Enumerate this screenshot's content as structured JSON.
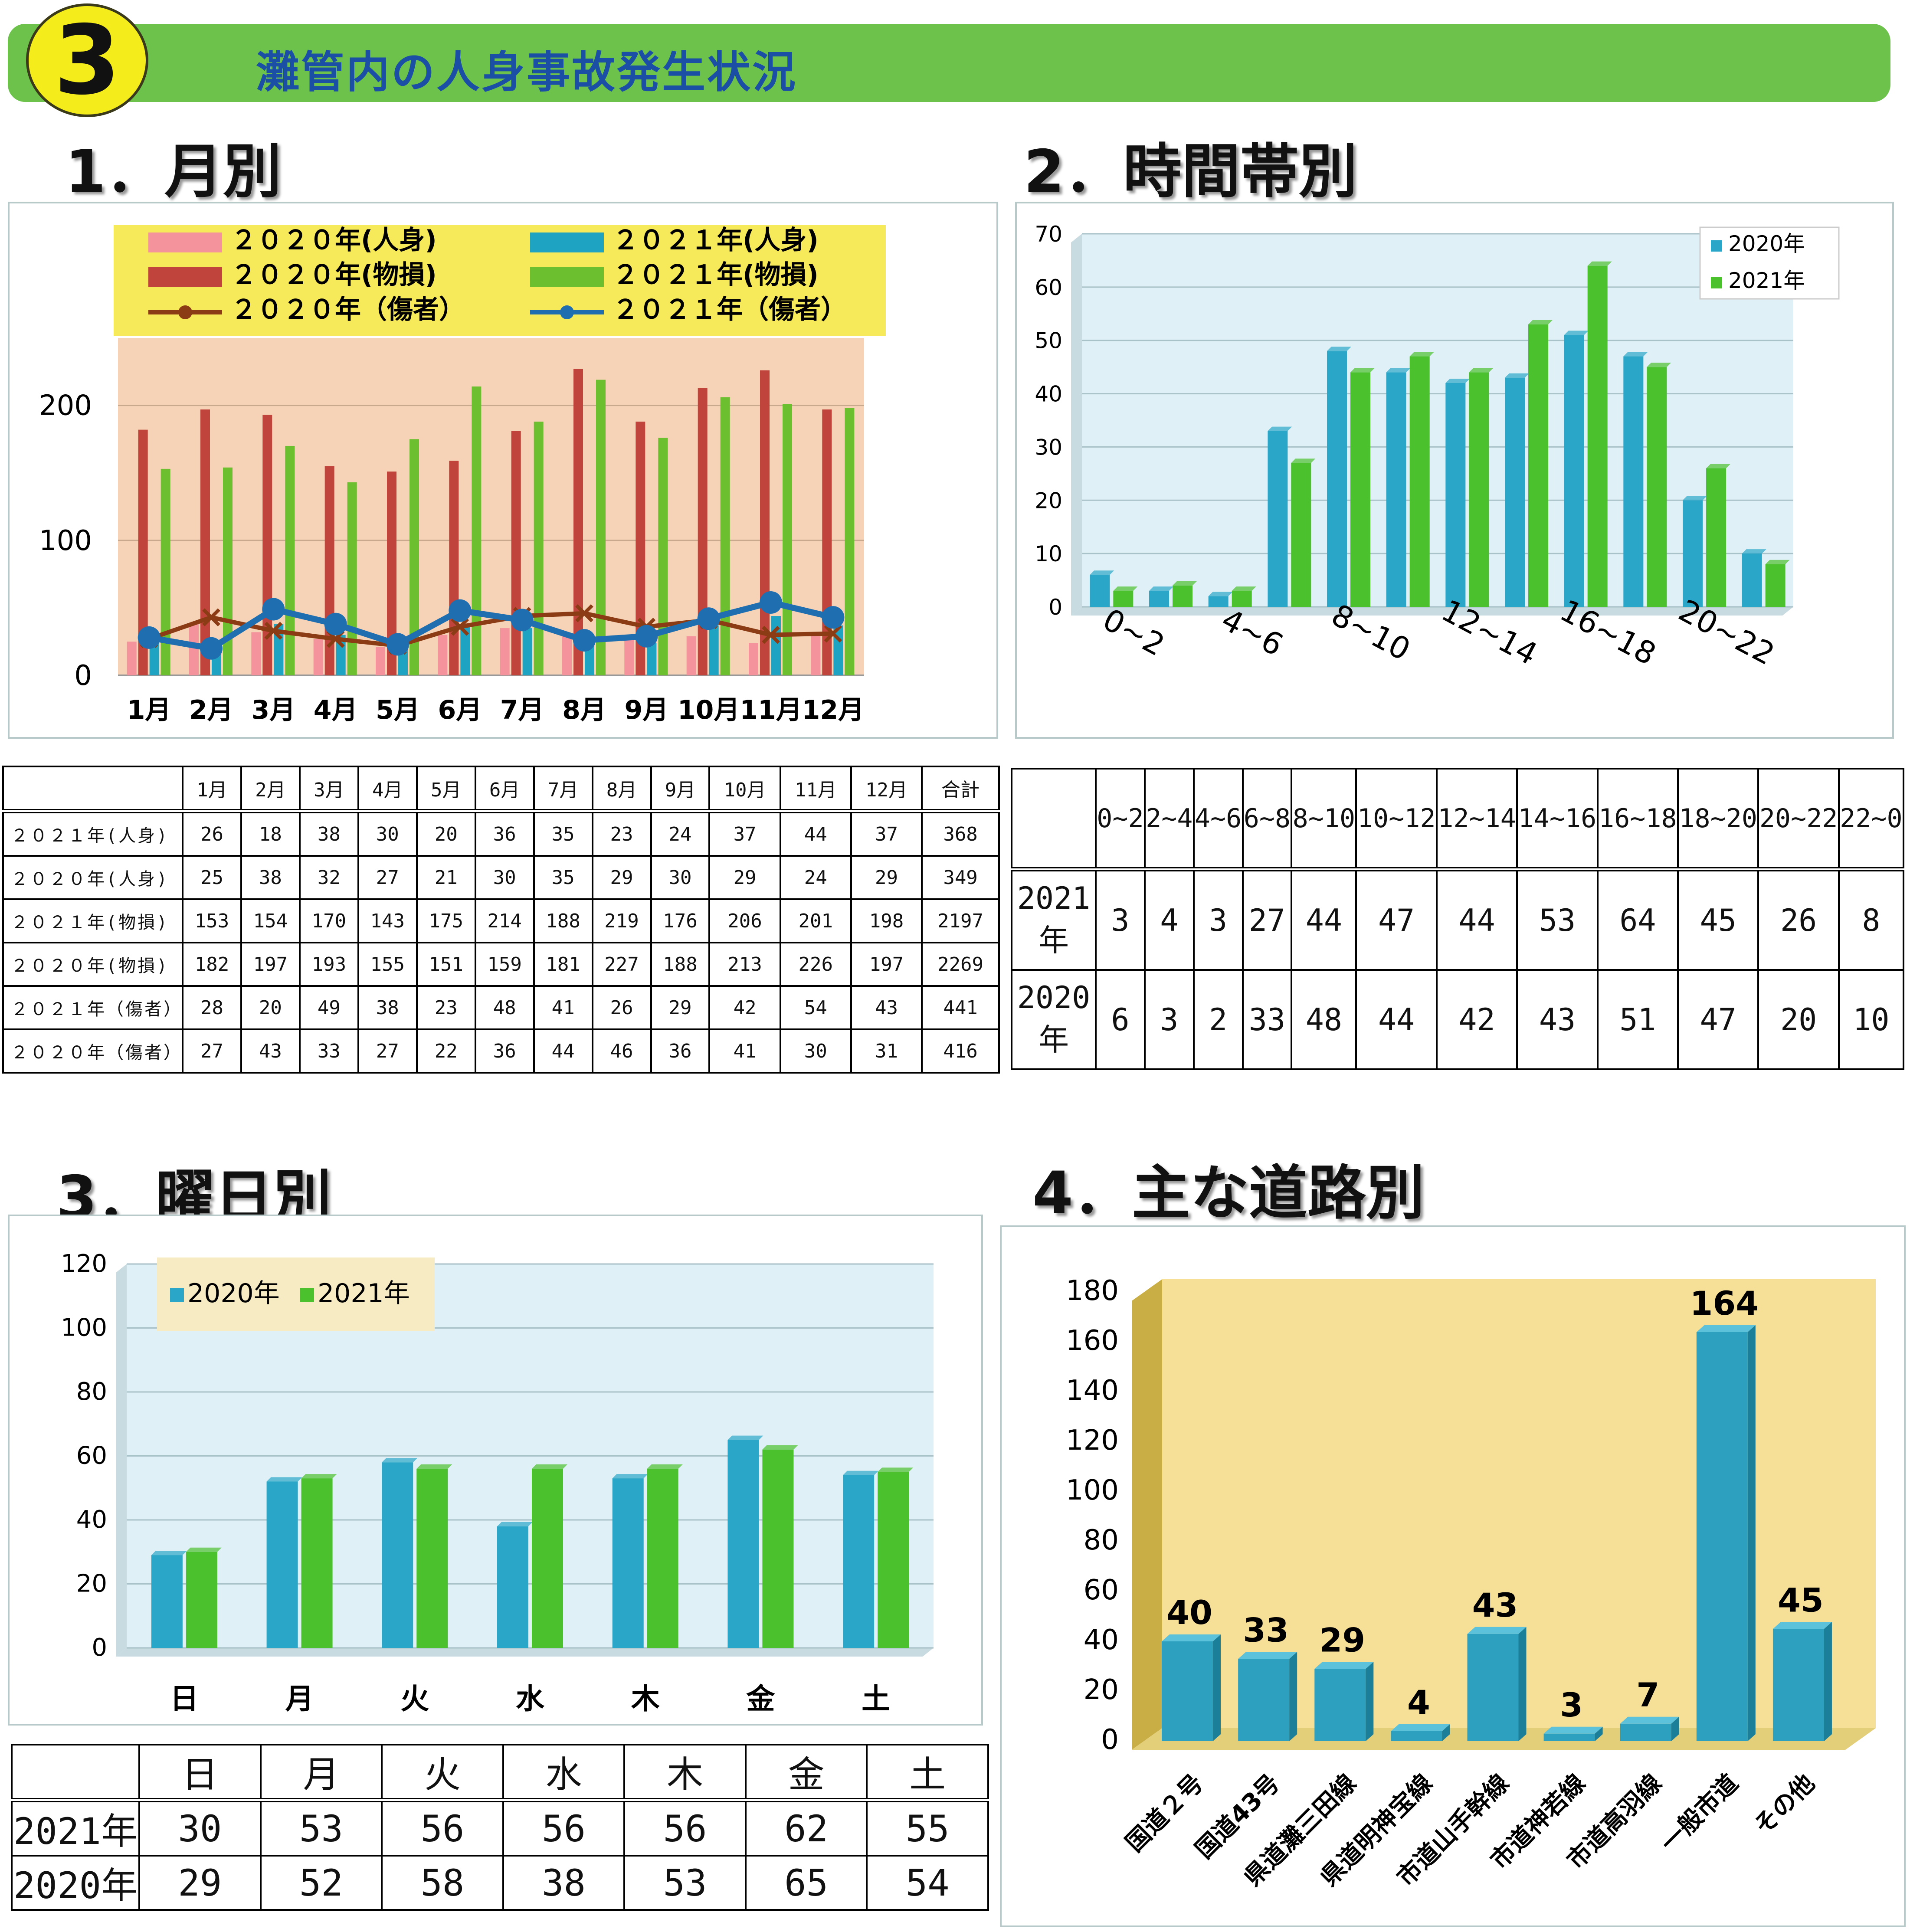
{
  "header": {
    "number": "3",
    "title": "灘管内の人身事故発生状況"
  },
  "sections": {
    "monthly": "1．月別",
    "hourly": "2．時間帯別",
    "weekday": "3．曜日別",
    "road": "4．主な道路別"
  },
  "colors": {
    "injury2020": "#f4939c",
    "property2020": "#c0443c",
    "casualty2020": "#8b3c14",
    "injury2021": "#1ea4c2",
    "property2021": "#6cbf2f",
    "casualty2021": "#1f6fb0",
    "legend_bg": "#f7ea5a",
    "plot_bg_monthly": "#f6d3b6",
    "plot_bg_blue": "#dff1f6",
    "plot_bg_road": "#f6df96",
    "bar_blue": "#2aa6c8",
    "bar_green": "#4cc12e"
  },
  "chart_data": [
    {
      "id": "monthly",
      "type": "bar",
      "categories": [
        "1月",
        "2月",
        "3月",
        "4月",
        "5月",
        "6月",
        "7月",
        "8月",
        "9月",
        "10月",
        "11月",
        "12月"
      ],
      "ylim": [
        0,
        250
      ],
      "yticks": [
        "0",
        "100",
        "200"
      ],
      "series": [
        {
          "name": "２０２０年(人身)",
          "type": "bar",
          "values": [
            25,
            38,
            32,
            27,
            21,
            30,
            35,
            29,
            30,
            29,
            24,
            29
          ]
        },
        {
          "name": "２０２０年(物損)",
          "type": "bar",
          "values": [
            182,
            197,
            193,
            155,
            151,
            159,
            181,
            227,
            188,
            213,
            226,
            197
          ]
        },
        {
          "name": "２０２１年(人身)",
          "type": "bar",
          "values": [
            26,
            18,
            38,
            30,
            20,
            36,
            35,
            23,
            24,
            37,
            44,
            37
          ]
        },
        {
          "name": "２０２１年(物損)",
          "type": "bar",
          "values": [
            153,
            154,
            170,
            143,
            175,
            214,
            188,
            219,
            176,
            206,
            201,
            198
          ]
        },
        {
          "name": "２０２０年（傷者）",
          "type": "line",
          "values": [
            27,
            43,
            33,
            27,
            22,
            36,
            44,
            46,
            36,
            41,
            30,
            31
          ]
        },
        {
          "name": "２０２１年（傷者）",
          "type": "line",
          "values": [
            28,
            20,
            49,
            38,
            23,
            48,
            41,
            26,
            29,
            42,
            54,
            43
          ]
        }
      ]
    },
    {
      "id": "hourly",
      "type": "bar",
      "categories": [
        "0~2",
        "2~4",
        "4~6",
        "6~8",
        "8~10",
        "10~12",
        "12~14",
        "14~16",
        "16~18",
        "18~20",
        "20~22",
        "22~0"
      ],
      "axis_labels": [
        "0~2",
        "4~6",
        "8~10",
        "12~14",
        "16~18",
        "20~22"
      ],
      "ylim": [
        0,
        70
      ],
      "yticks": [
        "0",
        "10",
        "20",
        "30",
        "40",
        "50",
        "60",
        "70"
      ],
      "series": [
        {
          "name": "2020年",
          "values": [
            6,
            3,
            2,
            33,
            48,
            44,
            42,
            43,
            51,
            47,
            20,
            10
          ]
        },
        {
          "name": "2021年",
          "values": [
            3,
            4,
            3,
            27,
            44,
            47,
            44,
            53,
            64,
            45,
            26,
            8
          ]
        }
      ]
    },
    {
      "id": "weekday",
      "type": "bar",
      "categories": [
        "日",
        "月",
        "火",
        "水",
        "木",
        "金",
        "土"
      ],
      "ylim": [
        0,
        120
      ],
      "yticks": [
        "0",
        "20",
        "40",
        "60",
        "80",
        "100",
        "120"
      ],
      "series": [
        {
          "name": "2020年",
          "values": [
            29,
            52,
            58,
            38,
            53,
            65,
            54
          ]
        },
        {
          "name": "2021年",
          "values": [
            30,
            53,
            56,
            56,
            56,
            62,
            55
          ]
        }
      ]
    },
    {
      "id": "road",
      "type": "bar",
      "categories": [
        "国道２号",
        "国道43号",
        "県道灘三田線",
        "県道明神宝線",
        "市道山手幹線",
        "市道神若線",
        "市道高羽線",
        "一般市道",
        "その他"
      ],
      "values": [
        40,
        33,
        29,
        4,
        43,
        3,
        7,
        164,
        45
      ],
      "labels": [
        "40",
        "33",
        "29",
        "4",
        "43",
        "3",
        "7",
        "164",
        "45"
      ],
      "ylim": [
        0,
        180
      ],
      "yticks": [
        "0",
        "20",
        "40",
        "60",
        "80",
        "100",
        "120",
        "140",
        "160",
        "180"
      ]
    }
  ],
  "tables": {
    "monthly": {
      "headers": [
        "",
        "1月",
        "2月",
        "3月",
        "4月",
        "5月",
        "6月",
        "7月",
        "8月",
        "9月",
        "10月",
        "11月",
        "12月",
        "合計"
      ],
      "rows": [
        [
          "２０２１年(人身)",
          "26",
          "18",
          "38",
          "30",
          "20",
          "36",
          "35",
          "23",
          "24",
          "37",
          "44",
          "37",
          "368"
        ],
        [
          "２０２０年(人身)",
          "25",
          "38",
          "32",
          "27",
          "21",
          "30",
          "35",
          "29",
          "30",
          "29",
          "24",
          "29",
          "349"
        ],
        [
          "２０２１年(物損)",
          "153",
          "154",
          "170",
          "143",
          "175",
          "214",
          "188",
          "219",
          "176",
          "206",
          "201",
          "198",
          "2197"
        ],
        [
          "２０２０年(物損)",
          "182",
          "197",
          "193",
          "155",
          "151",
          "159",
          "181",
          "227",
          "188",
          "213",
          "226",
          "197",
          "2269"
        ],
        [
          "２０２１年（傷者）",
          "28",
          "20",
          "49",
          "38",
          "23",
          "48",
          "41",
          "26",
          "29",
          "42",
          "54",
          "43",
          "441"
        ],
        [
          "２０２０年（傷者）",
          "27",
          "43",
          "33",
          "27",
          "22",
          "36",
          "44",
          "46",
          "36",
          "41",
          "30",
          "31",
          "416"
        ]
      ]
    },
    "hourly": {
      "headers": [
        "",
        "0~2",
        "2~4",
        "4~6",
        "6~8",
        "8~10",
        "10~12",
        "12~14",
        "14~16",
        "16~18",
        "18~20",
        "20~22",
        "22~0"
      ],
      "rows": [
        [
          "2021年",
          "3",
          "4",
          "3",
          "27",
          "44",
          "47",
          "44",
          "53",
          "64",
          "45",
          "26",
          "8"
        ],
        [
          "2020年",
          "6",
          "3",
          "2",
          "33",
          "48",
          "44",
          "42",
          "43",
          "51",
          "47",
          "20",
          "10"
        ]
      ]
    },
    "weekday": {
      "headers": [
        "",
        "日",
        "月",
        "火",
        "水",
        "木",
        "金",
        "土"
      ],
      "rows": [
        [
          "2021年",
          "30",
          "53",
          "56",
          "56",
          "56",
          "62",
          "55"
        ],
        [
          "2020年",
          "29",
          "52",
          "58",
          "38",
          "53",
          "65",
          "54"
        ]
      ]
    }
  }
}
